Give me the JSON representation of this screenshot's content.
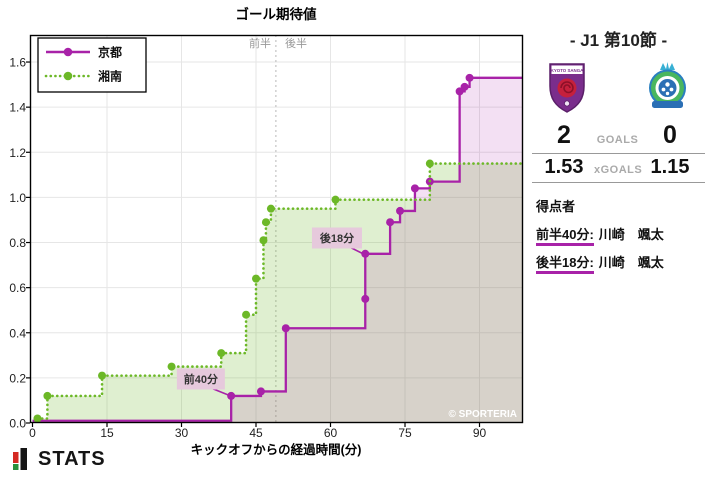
{
  "chart": {
    "title": "ゴール期待値",
    "xlabel": "キックオフからの経過時間(分)",
    "halves": {
      "first": "前半",
      "second": "後半"
    },
    "watermark": "© SPORTERIA",
    "colors": {
      "kyoto": "#a822a8",
      "shonan": "#6cb827",
      "grid": "#e6e6e6",
      "halftime_line": "#c4c4c4",
      "annotation_bg": "#e6c9dc"
    }
  },
  "chart_data": {
    "type": "line",
    "subtype": "step",
    "title": "ゴール期待値",
    "xlabel": "キックオフからの経過時間(分)",
    "ylabel": "",
    "xlim": [
      0,
      98.7
    ],
    "ylim": [
      0,
      1.72
    ],
    "xticks": [
      0,
      15,
      30,
      45,
      60,
      75,
      90
    ],
    "ytick_labels": [
      "0.0",
      "0.2",
      "0.4",
      "0.6",
      "0.8",
      "1.0",
      "1.2",
      "1.4",
      "1.6"
    ],
    "grid": true,
    "legend_position": "upper left",
    "halftime_x": 49,
    "series": [
      {
        "name": "京都",
        "color": "#a822a8",
        "line_style": "solid",
        "final_xg": 1.53,
        "points": [
          [
            0,
            0.01,
            0
          ],
          [
            40,
            0.12,
            1
          ],
          [
            46,
            0.14,
            1
          ],
          [
            51,
            0.42,
            1
          ],
          [
            67,
            0.55,
            1
          ],
          [
            67,
            0.75,
            1
          ],
          [
            72,
            0.89,
            1
          ],
          [
            74,
            0.94,
            1
          ],
          [
            77,
            1.04,
            1
          ],
          [
            80,
            1.07,
            1
          ],
          [
            86,
            1.47,
            1
          ],
          [
            87,
            1.49,
            1
          ],
          [
            88,
            1.53,
            1
          ]
        ]
      },
      {
        "name": "湘南",
        "color": "#6cb827",
        "line_style": "dotted",
        "final_xg": 1.15,
        "points": [
          [
            1,
            0.02,
            1
          ],
          [
            3,
            0.12,
            1
          ],
          [
            14,
            0.21,
            1
          ],
          [
            28,
            0.25,
            1
          ],
          [
            38,
            0.31,
            1
          ],
          [
            43,
            0.48,
            1
          ],
          [
            45,
            0.64,
            1
          ],
          [
            46.5,
            0.81,
            1
          ],
          [
            47,
            0.89,
            1
          ],
          [
            48,
            0.95,
            1
          ],
          [
            61,
            0.99,
            1
          ],
          [
            80,
            1.15,
            1
          ]
        ]
      }
    ],
    "annotations": [
      {
        "text": "前40分",
        "cx": 33.9,
        "cy": 0.195,
        "w": 48,
        "h": 21,
        "arrow": [
          [
            36.3,
            0.152
          ],
          [
            39.3,
            0.125
          ]
        ]
      },
      {
        "text": "後18分",
        "cx": 61.3,
        "cy": 0.82,
        "w": 50,
        "h": 21,
        "arrow": [
          [
            63.2,
            0.787
          ],
          [
            66.4,
            0.752
          ]
        ]
      }
    ]
  },
  "scoreboard": {
    "competition": "- J1 第10節 -",
    "goals_label": "GOALS",
    "xg_label": "xGOALS",
    "home": {
      "name": "京都",
      "goals": "2",
      "xg": "1.53"
    },
    "away": {
      "name": "湘南",
      "goals": "0",
      "xg": "1.15"
    },
    "scorers_title": "得点者",
    "scorers": [
      {
        "label": "前半40分:",
        "name": "川崎　颯太"
      },
      {
        "label": "後半18分:",
        "name": "川崎　颯太"
      }
    ]
  },
  "footer": {
    "brand": "STATS"
  }
}
